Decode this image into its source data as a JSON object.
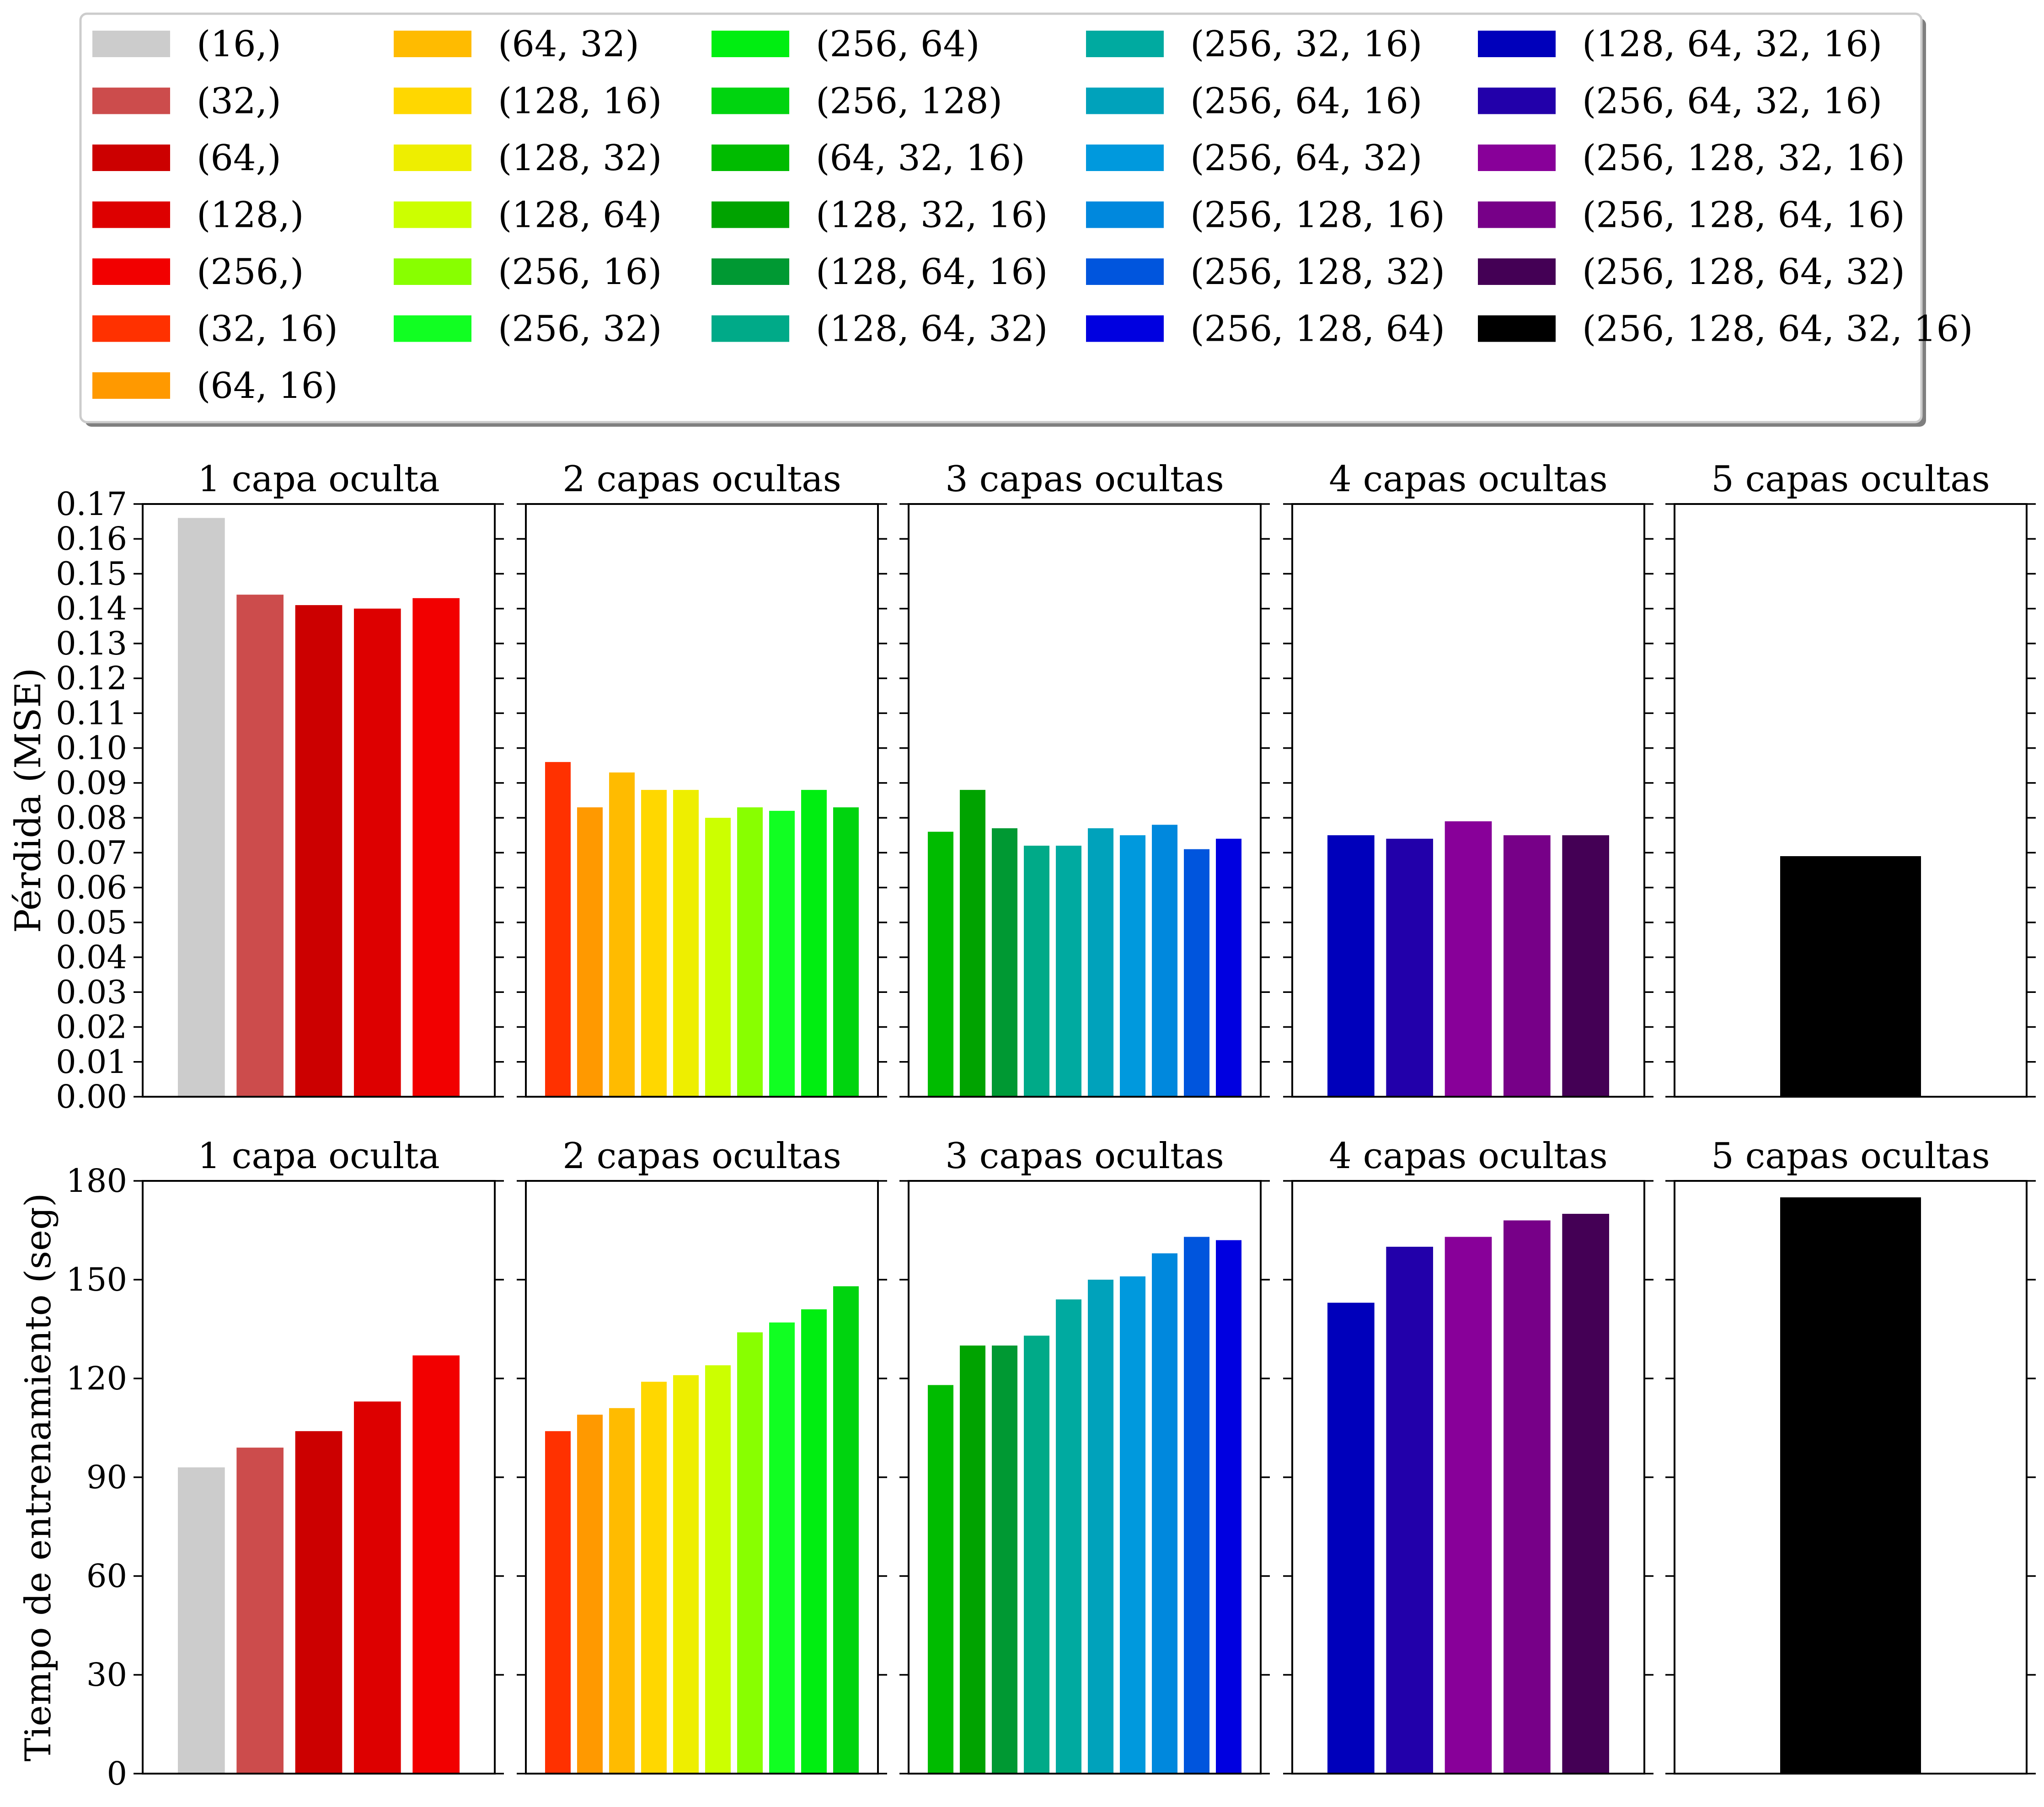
{
  "legend": {
    "entries": [
      {
        "label": "(16,)",
        "color": "#cccccc"
      },
      {
        "label": "(32,)",
        "color": "#cc4c4c"
      },
      {
        "label": "(64,)",
        "color": "#cc0000"
      },
      {
        "label": "(128,)",
        "color": "#dd0000"
      },
      {
        "label": "(256,)",
        "color": "#f20000"
      },
      {
        "label": "(32, 16)",
        "color": "#ff3100"
      },
      {
        "label": "(64, 16)",
        "color": "#ff9900"
      },
      {
        "label": "(64, 32)",
        "color": "#ffbb00"
      },
      {
        "label": "(128, 16)",
        "color": "#ffd700"
      },
      {
        "label": "(128, 32)",
        "color": "#eeee00"
      },
      {
        "label": "(128, 64)",
        "color": "#ccff00"
      },
      {
        "label": "(256, 16)",
        "color": "#88ff00"
      },
      {
        "label": "(256, 32)",
        "color": "#11ff22"
      },
      {
        "label": "(256, 64)",
        "color": "#00ee11"
      },
      {
        "label": "(256, 128)",
        "color": "#00d40f"
      },
      {
        "label": "(64, 32, 16)",
        "color": "#00bb00"
      },
      {
        "label": "(128, 32, 16)",
        "color": "#00a300"
      },
      {
        "label": "(128, 64, 16)",
        "color": "#009933"
      },
      {
        "label": "(128, 64, 32)",
        "color": "#00aa88"
      },
      {
        "label": "(256, 32, 16)",
        "color": "#00aaa0"
      },
      {
        "label": "(256, 64, 16)",
        "color": "#00a2bb"
      },
      {
        "label": "(256, 64, 32)",
        "color": "#0099dd"
      },
      {
        "label": "(256, 128, 16)",
        "color": "#0088dd"
      },
      {
        "label": "(256, 128, 32)",
        "color": "#0055dd"
      },
      {
        "label": "(256, 128, 64)",
        "color": "#0000e0"
      },
      {
        "label": "(128, 64, 32, 16)",
        "color": "#0000bb"
      },
      {
        "label": "(256, 64, 32, 16)",
        "color": "#2200aa"
      },
      {
        "label": "(256, 128, 32, 16)",
        "color": "#880099"
      },
      {
        "label": "(256, 128, 64, 16)",
        "color": "#770088"
      },
      {
        "label": "(256, 128, 64, 32)",
        "color": "#440055"
      },
      {
        "label": "(256, 128, 64, 32, 16)",
        "color": "#000000"
      }
    ]
  },
  "chart_data": [
    {
      "type": "bar",
      "row": "loss",
      "title": "1 capa oculta",
      "ylabel": "Pérdida (MSE)",
      "ylim": [
        0,
        0.17
      ],
      "yticks": [
        "0.00",
        "0.01",
        "0.02",
        "0.03",
        "0.04",
        "0.05",
        "0.06",
        "0.07",
        "0.08",
        "0.09",
        "0.10",
        "0.11",
        "0.12",
        "0.13",
        "0.14",
        "0.15",
        "0.16",
        "0.17"
      ],
      "categories": [
        "(16,)",
        "(32,)",
        "(64,)",
        "(128,)",
        "(256,)"
      ],
      "values": [
        0.166,
        0.144,
        0.141,
        0.14,
        0.143
      ]
    },
    {
      "type": "bar",
      "row": "loss",
      "title": "2 capas ocultas",
      "ylim": [
        0,
        0.17
      ],
      "categories": [
        "(32, 16)",
        "(64, 16)",
        "(64, 32)",
        "(128, 16)",
        "(128, 32)",
        "(128, 64)",
        "(256, 16)",
        "(256, 32)",
        "(256, 64)",
        "(256, 128)"
      ],
      "values": [
        0.096,
        0.083,
        0.093,
        0.088,
        0.088,
        0.08,
        0.083,
        0.082,
        0.088,
        0.083
      ]
    },
    {
      "type": "bar",
      "row": "loss",
      "title": "3 capas ocultas",
      "ylim": [
        0,
        0.17
      ],
      "categories": [
        "(64, 32, 16)",
        "(128, 32, 16)",
        "(128, 64, 16)",
        "(128, 64, 32)",
        "(256, 32, 16)",
        "(256, 64, 16)",
        "(256, 64, 32)",
        "(256, 128, 16)",
        "(256, 128, 32)",
        "(256, 128, 64)"
      ],
      "values": [
        0.076,
        0.088,
        0.077,
        0.072,
        0.072,
        0.077,
        0.075,
        0.078,
        0.071,
        0.074
      ]
    },
    {
      "type": "bar",
      "row": "loss",
      "title": "4 capas ocultas",
      "ylim": [
        0,
        0.17
      ],
      "categories": [
        "(128, 64, 32, 16)",
        "(256, 64, 32, 16)",
        "(256, 128, 32, 16)",
        "(256, 128, 64, 16)",
        "(256, 128, 64, 32)"
      ],
      "values": [
        0.075,
        0.074,
        0.079,
        0.075,
        0.075
      ]
    },
    {
      "type": "bar",
      "row": "loss",
      "title": "5 capas ocultas",
      "ylim": [
        0,
        0.17
      ],
      "categories": [
        "(256, 128, 64, 32, 16)"
      ],
      "values": [
        0.069
      ]
    },
    {
      "type": "bar",
      "row": "time",
      "title": "1 capa oculta",
      "ylabel": "Tiempo de entrenamiento (seg)",
      "ylim": [
        0,
        180
      ],
      "yticks": [
        "0",
        "30",
        "60",
        "90",
        "120",
        "150",
        "180"
      ],
      "categories": [
        "(16,)",
        "(32,)",
        "(64,)",
        "(128,)",
        "(256,)"
      ],
      "values": [
        93,
        99,
        104,
        113,
        127
      ]
    },
    {
      "type": "bar",
      "row": "time",
      "title": "2 capas ocultas",
      "ylim": [
        0,
        180
      ],
      "categories": [
        "(32, 16)",
        "(64, 16)",
        "(64, 32)",
        "(128, 16)",
        "(128, 32)",
        "(128, 64)",
        "(256, 16)",
        "(256, 32)",
        "(256, 64)",
        "(256, 128)"
      ],
      "values": [
        104,
        109,
        111,
        119,
        121,
        124,
        134,
        137,
        141,
        148
      ]
    },
    {
      "type": "bar",
      "row": "time",
      "title": "3 capas ocultas",
      "ylim": [
        0,
        180
      ],
      "categories": [
        "(64, 32, 16)",
        "(128, 32, 16)",
        "(128, 64, 16)",
        "(128, 64, 32)",
        "(256, 32, 16)",
        "(256, 64, 16)",
        "(256, 64, 32)",
        "(256, 128, 16)",
        "(256, 128, 32)",
        "(256, 128, 64)"
      ],
      "values": [
        118,
        130,
        130,
        133,
        144,
        150,
        151,
        158,
        163,
        162
      ]
    },
    {
      "type": "bar",
      "row": "time",
      "title": "4 capas ocultas",
      "ylim": [
        0,
        180
      ],
      "categories": [
        "(128, 64, 32, 16)",
        "(256, 64, 32, 16)",
        "(256, 128, 32, 16)",
        "(256, 128, 64, 16)",
        "(256, 128, 64, 32)"
      ],
      "values": [
        143,
        160,
        163,
        168,
        170
      ]
    },
    {
      "type": "bar",
      "row": "time",
      "title": "5 capas ocultas",
      "ylim": [
        0,
        180
      ],
      "categories": [
        "(256, 128, 64, 32, 16)"
      ],
      "values": [
        175
      ]
    }
  ]
}
